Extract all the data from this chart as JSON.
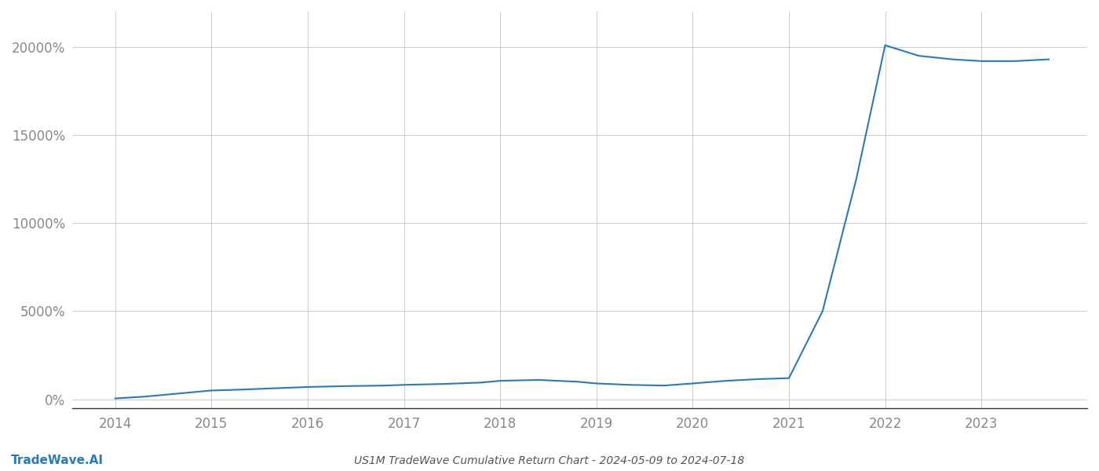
{
  "title": "US1M TradeWave Cumulative Return Chart - 2024-05-09 to 2024-07-18",
  "watermark_left": "TradeWave.AI",
  "x_years": [
    2014,
    2015,
    2016,
    2017,
    2018,
    2019,
    2020,
    2021,
    2022,
    2023
  ],
  "line_color": "#2a7ab5",
  "line_width": 1.5,
  "background_color": "#ffffff",
  "grid_color": "#cccccc",
  "data_x": [
    2014.0,
    2014.3,
    2015.0,
    2015.3,
    2016.0,
    2016.4,
    2016.8,
    2017.0,
    2017.4,
    2017.8,
    2018.0,
    2018.4,
    2018.8,
    2019.0,
    2019.35,
    2019.7,
    2020.0,
    2020.35,
    2020.7,
    2021.0,
    2021.35,
    2021.7,
    2022.0,
    2022.35,
    2022.7,
    2023.0,
    2023.35,
    2023.7
  ],
  "data_y": [
    50,
    150,
    500,
    550,
    700,
    750,
    780,
    820,
    870,
    950,
    1050,
    1100,
    1000,
    900,
    820,
    780,
    900,
    1050,
    1150,
    1200,
    5000,
    12500,
    20100,
    19500,
    19300,
    19200,
    19200,
    19300
  ],
  "ytick_values": [
    0,
    5000,
    10000,
    15000,
    20000
  ],
  "ytick_labels": [
    "0%",
    "5000%",
    "10000%",
    "15000%",
    "20000%"
  ],
  "ylim": [
    -500,
    22000
  ],
  "xlim": [
    2013.55,
    2024.1
  ],
  "title_fontsize": 10,
  "tick_fontsize": 12,
  "watermark_fontsize": 11,
  "axis_label_color": "#888888",
  "title_color": "#555555",
  "bottom_spine_color": "#333333"
}
